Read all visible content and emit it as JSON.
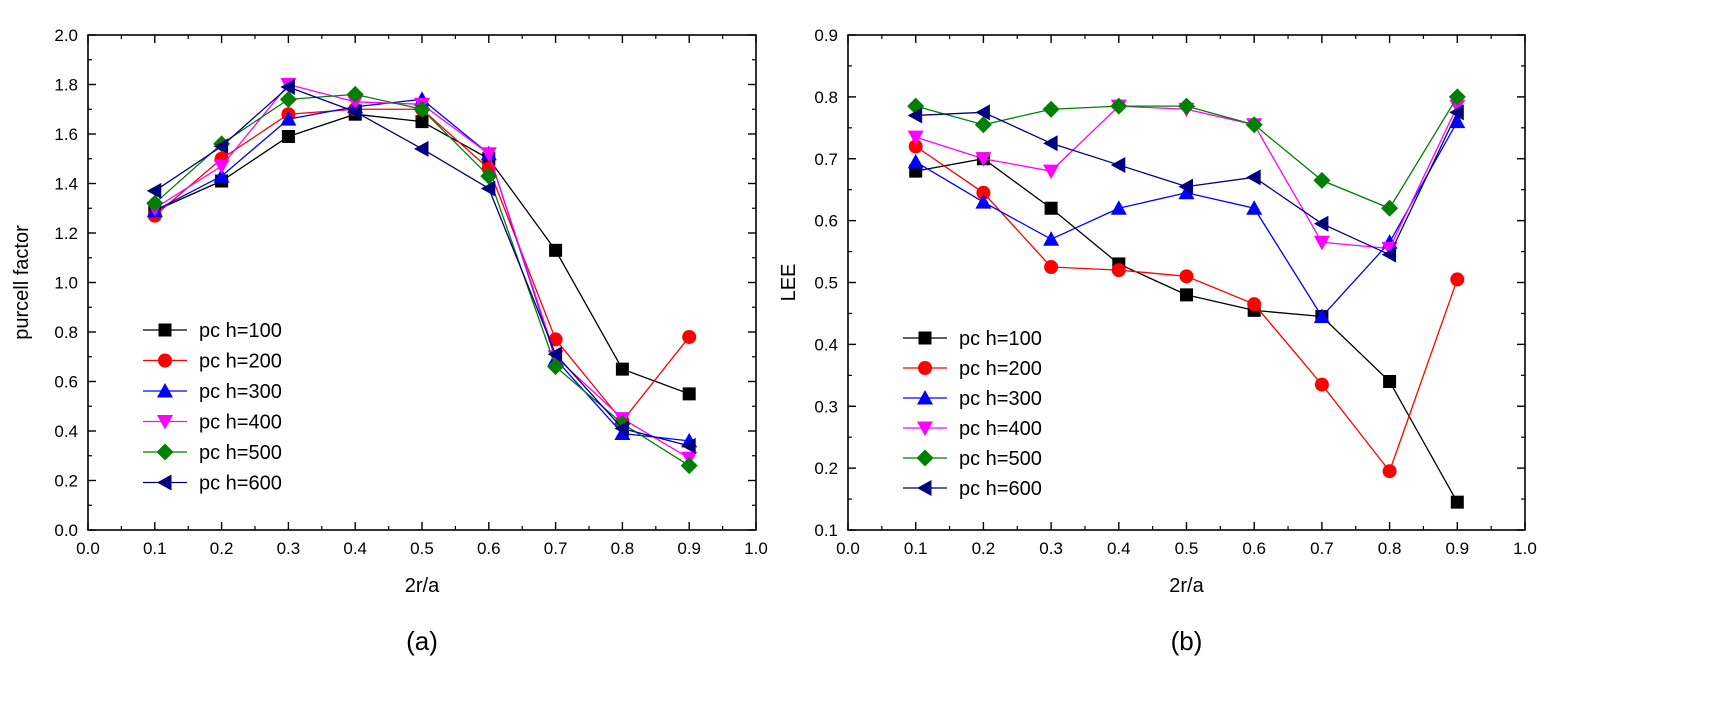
{
  "chart_data": [
    {
      "type": "line",
      "panel_label": "(a)",
      "xlabel": "2r/a",
      "ylabel": "purcell factor",
      "xlim": [
        0.0,
        1.0
      ],
      "ylim": [
        0.0,
        2.0
      ],
      "xticks": [
        "0.0",
        "0.1",
        "0.2",
        "0.3",
        "0.4",
        "0.5",
        "0.6",
        "0.7",
        "0.8",
        "0.9",
        "1.0"
      ],
      "yticks": [
        "0.0",
        "0.2",
        "0.4",
        "0.6",
        "0.8",
        "1.0",
        "1.2",
        "1.4",
        "1.6",
        "1.8",
        "2.0"
      ],
      "legend_position": "lower-left",
      "x": [
        0.1,
        0.2,
        0.3,
        0.4,
        0.5,
        0.6,
        0.7,
        0.8,
        0.9
      ],
      "series": [
        {
          "name": "pc h=100",
          "color": "#000000",
          "marker": "square",
          "values": [
            1.29,
            1.41,
            1.59,
            1.68,
            1.65,
            1.5,
            1.13,
            0.65,
            0.55
          ]
        },
        {
          "name": "pc h=200",
          "color": "#ff0000",
          "marker": "circle",
          "values": [
            1.27,
            1.5,
            1.68,
            1.7,
            1.7,
            1.46,
            0.77,
            0.44,
            0.78
          ]
        },
        {
          "name": "pc h=300",
          "color": "#0000ff",
          "marker": "triangle-up",
          "values": [
            1.29,
            1.43,
            1.66,
            1.71,
            1.74,
            1.52,
            0.69,
            0.39,
            0.36
          ]
        },
        {
          "name": "pc h=400",
          "color": "#ff00ff",
          "marker": "triangle-down",
          "values": [
            1.3,
            1.47,
            1.8,
            1.73,
            1.72,
            1.52,
            0.7,
            0.45,
            0.29
          ]
        },
        {
          "name": "pc h=500",
          "color": "#008000",
          "marker": "diamond",
          "values": [
            1.32,
            1.56,
            1.74,
            1.76,
            1.7,
            1.43,
            0.66,
            0.43,
            0.26
          ]
        },
        {
          "name": "pc h=600",
          "color": "#000080",
          "marker": "triangle-left",
          "values": [
            1.37,
            1.55,
            1.79,
            1.69,
            1.54,
            1.38,
            0.71,
            0.41,
            0.34
          ]
        }
      ]
    },
    {
      "type": "line",
      "panel_label": "(b)",
      "xlabel": "2r/a",
      "ylabel": "LEE",
      "xlim": [
        0.0,
        1.0
      ],
      "ylim": [
        0.1,
        0.9
      ],
      "xticks": [
        "0.0",
        "0.1",
        "0.2",
        "0.3",
        "0.4",
        "0.5",
        "0.6",
        "0.7",
        "0.8",
        "0.9",
        "1.0"
      ],
      "yticks": [
        "0.1",
        "0.2",
        "0.3",
        "0.4",
        "0.5",
        "0.6",
        "0.7",
        "0.8",
        "0.9"
      ],
      "legend_position": "lower-left",
      "x": [
        0.1,
        0.2,
        0.3,
        0.4,
        0.5,
        0.6,
        0.7,
        0.8,
        0.9
      ],
      "series": [
        {
          "name": "pc h=100",
          "color": "#000000",
          "marker": "square",
          "values": [
            0.68,
            0.7,
            0.62,
            0.53,
            0.48,
            0.455,
            0.445,
            0.34,
            0.145
          ]
        },
        {
          "name": "pc h=200",
          "color": "#ff0000",
          "marker": "circle",
          "values": [
            0.72,
            0.645,
            0.525,
            0.52,
            0.51,
            0.465,
            0.335,
            0.195,
            0.505
          ]
        },
        {
          "name": "pc h=300",
          "color": "#0000ff",
          "marker": "triangle-up",
          "values": [
            0.695,
            0.63,
            0.57,
            0.62,
            0.645,
            0.62,
            0.445,
            0.565,
            0.76
          ]
        },
        {
          "name": "pc h=400",
          "color": "#ff00ff",
          "marker": "triangle-down",
          "values": [
            0.735,
            0.7,
            0.68,
            0.785,
            0.78,
            0.755,
            0.565,
            0.555,
            0.785
          ]
        },
        {
          "name": "pc h=500",
          "color": "#008000",
          "marker": "diamond",
          "values": [
            0.785,
            0.755,
            0.78,
            0.785,
            0.785,
            0.755,
            0.665,
            0.62,
            0.8
          ]
        },
        {
          "name": "pc h=600",
          "color": "#000080",
          "marker": "triangle-left",
          "values": [
            0.77,
            0.775,
            0.725,
            0.69,
            0.655,
            0.67,
            0.595,
            0.545,
            0.775
          ]
        }
      ]
    }
  ]
}
